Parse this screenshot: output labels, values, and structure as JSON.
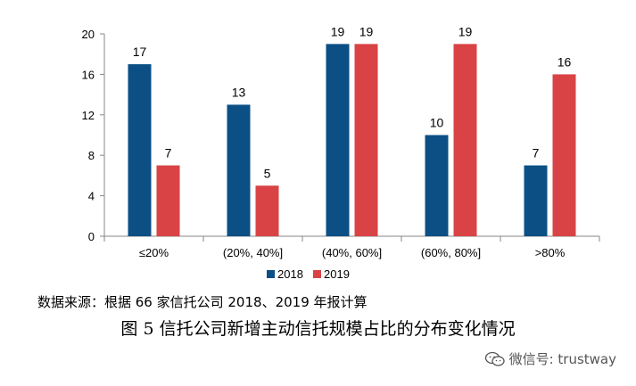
{
  "chart_data": {
    "type": "bar",
    "categories": [
      "≤20%",
      "(20%, 40%]",
      "(40%, 60%]",
      "(60%, 80%]",
      ">80%"
    ],
    "series": [
      {
        "name": "2018",
        "color": "#0b4f84",
        "values": [
          17,
          13,
          19,
          10,
          7
        ]
      },
      {
        "name": "2019",
        "color": "#d94345",
        "values": [
          7,
          5,
          19,
          19,
          16
        ]
      }
    ],
    "yticks": [
      0,
      4,
      8,
      12,
      16,
      20
    ],
    "ylim": [
      0,
      20
    ],
    "grid": false,
    "legend": "bottom-center"
  },
  "source_note": "数据来源：根据 66 家信托公司 2018、2019 年报计算",
  "caption": "图 5   信托公司新增主动信托规模占比的分布变化情况",
  "watermark": {
    "text": "微信号: trustway",
    "icon": "wechat-icon"
  }
}
